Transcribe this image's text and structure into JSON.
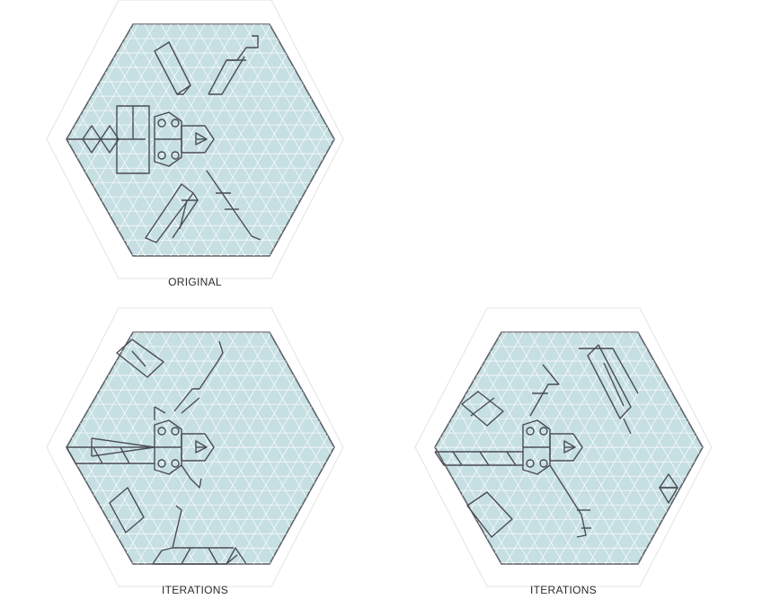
{
  "colors": {
    "hex_fill": "#c6dfe2",
    "grid_line": "#ffffff",
    "outline": "#5e6069",
    "ghost_outline": "#e3e3e3",
    "stroke": "#4a4c55",
    "caption_text": "#2b2b2b"
  },
  "panels": [
    {
      "id": "original",
      "caption": "ORIGINAL"
    },
    {
      "id": "iteration-1",
      "caption": "ITERATIONS"
    },
    {
      "id": "iteration-2",
      "caption": "ITERATIONS"
    }
  ]
}
